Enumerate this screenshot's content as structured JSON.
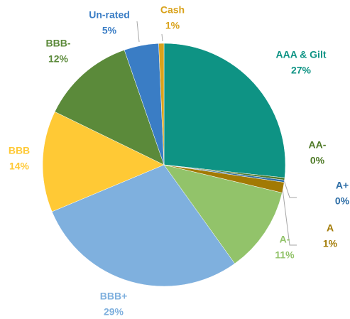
{
  "chart_data": {
    "type": "pie",
    "categories": [
      "AAA & Gilt",
      "AA-",
      "A+",
      "A",
      "A-",
      "BBB+",
      "BBB",
      "BBB-",
      "Un-rated",
      "Cash"
    ],
    "values": [
      26.7,
      0.3,
      0.3,
      1.4,
      11.4,
      28.6,
      13.5,
      12.5,
      4.6,
      0.7
    ],
    "value_labels": [
      "27%",
      "0%",
      "0%",
      "1%",
      "11%",
      "29%",
      "14%",
      "12%",
      "5%",
      "1%"
    ],
    "colors": [
      "#0e9384",
      "#4f7a28",
      "#2e6ea6",
      "#a27a04",
      "#92c36a",
      "#7fb0de",
      "#ffc935",
      "#5b8a3a",
      "#3a7dc5",
      "#d9a21b"
    ]
  }
}
